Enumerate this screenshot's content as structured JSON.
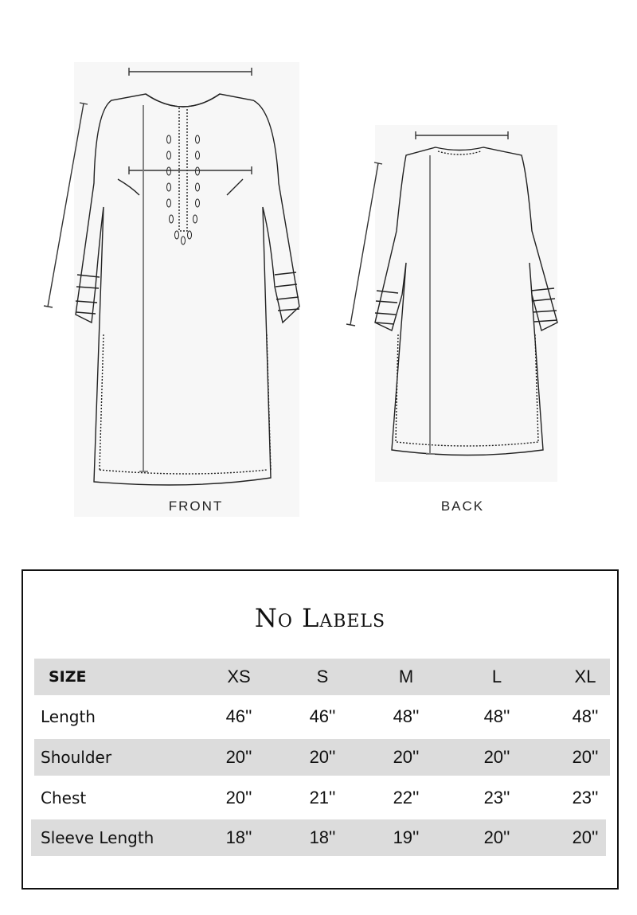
{
  "diagram": {
    "front_caption": "FRONT",
    "back_caption": "BACK"
  },
  "size_chart": {
    "title": "No Labels",
    "header": {
      "label": "SIZE",
      "sizes": [
        "XS",
        "S",
        "M",
        "L",
        "XL"
      ]
    },
    "rows": [
      {
        "label": "Length",
        "values": [
          "46''",
          "46''",
          "48''",
          "48''",
          "48''"
        ]
      },
      {
        "label": "Shoulder",
        "values": [
          "20''",
          "20''",
          "20''",
          "20''",
          "20''"
        ]
      },
      {
        "label": "Chest",
        "values": [
          "20''",
          "21''",
          "22''",
          "23''",
          "23''"
        ]
      },
      {
        "label": "Sleeve Length",
        "values": [
          "18''",
          "18''",
          "19''",
          "20''",
          "20''"
        ]
      }
    ],
    "row_shading": [
      "#dcdcdc",
      "#ffffff",
      "#dcdcdc",
      "#ffffff",
      "#dcdcdc"
    ]
  }
}
